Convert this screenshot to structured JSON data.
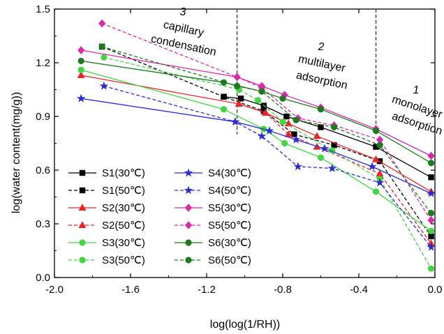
{
  "chart_data": {
    "type": "line",
    "xlabel": "log(log(1/RH))",
    "ylabel": "log(water content(mg/g))",
    "xlim": [
      -2.0,
      0.0
    ],
    "ylim": [
      0.0,
      1.5
    ],
    "xticks": [
      "-2.0",
      "-1.6",
      "-1.2",
      "-0.8",
      "-0.4",
      "0.0"
    ],
    "yticks": [
      "0.0",
      "0.3",
      "0.6",
      "0.9",
      "1.2",
      "1.5"
    ],
    "grid": false,
    "legend_position": "lower-left",
    "dividers_x": [
      -1.04,
      -0.31
    ],
    "annotations": [
      {
        "num": "3",
        "lines": [
          "capillary",
          "condensation"
        ]
      },
      {
        "num": "2",
        "lines": [
          "multilayer",
          "adsorption"
        ]
      },
      {
        "num": "1",
        "lines": [
          "monolayer",
          "adsorption"
        ]
      }
    ],
    "series": [
      {
        "name": "S1(30℃)",
        "color": "#000000",
        "dash": "solid",
        "marker": "square",
        "x": [
          -1.11,
          -1.02,
          -0.9,
          -0.78,
          -0.6,
          -0.31,
          -0.02
        ],
        "y": [
          1.01,
          1.0,
          0.96,
          0.9,
          0.84,
          0.73,
          0.56
        ]
      },
      {
        "name": "S1(50℃)",
        "color": "#000000",
        "dash": "dashed",
        "marker": "square",
        "x": [
          -1.75,
          -1.11,
          -0.9,
          -0.74,
          -0.53,
          -0.29,
          -0.02
        ],
        "y": [
          1.29,
          1.01,
          0.93,
          0.8,
          0.74,
          0.65,
          0.23
        ]
      },
      {
        "name": "S2(30℃)",
        "color": "#e8262a",
        "dash": "solid",
        "marker": "triangle",
        "x": [
          -1.86,
          -1.03,
          -0.89,
          -0.77,
          -0.62,
          -0.31,
          -0.02
        ],
        "y": [
          1.13,
          0.97,
          0.92,
          0.86,
          0.79,
          0.66,
          0.48
        ]
      },
      {
        "name": "S2(50℃)",
        "color": "#e8262a",
        "dash": "dashed",
        "marker": "triangle",
        "x": [
          -1.03,
          -0.89,
          -0.77,
          -0.62,
          -0.29,
          -0.02
        ],
        "y": [
          0.97,
          0.92,
          0.8,
          0.73,
          0.58,
          0.19
        ]
      },
      {
        "name": "S3(30℃)",
        "color": "#44d444",
        "dash": "solid",
        "marker": "circle",
        "x": [
          -1.86,
          -1.11,
          -0.9,
          -0.79,
          -0.6,
          -0.31,
          -0.02
        ],
        "y": [
          1.16,
          0.94,
          0.83,
          0.75,
          0.67,
          0.48,
          0.26
        ]
      },
      {
        "name": "S3(50℃)",
        "color": "#44d444",
        "dash": "dashed",
        "marker": "circle",
        "x": [
          -1.74,
          -1.03,
          -0.93,
          -0.8,
          -0.54,
          -0.29,
          -0.02
        ],
        "y": [
          1.23,
          1.05,
          0.99,
          0.87,
          0.71,
          0.55,
          0.05
        ]
      },
      {
        "name": "S4(30℃)",
        "color": "#2c2cd4",
        "dash": "solid",
        "marker": "star",
        "x": [
          -1.86,
          -1.05,
          -0.87,
          -0.73,
          -0.58,
          -0.33,
          -0.02
        ],
        "y": [
          1.0,
          0.87,
          0.82,
          0.77,
          0.72,
          0.62,
          0.47
        ]
      },
      {
        "name": "S4(50℃)",
        "color": "#2c2cd4",
        "dash": "dashed",
        "marker": "star",
        "x": [
          -1.74,
          -1.05,
          -0.91,
          -0.72,
          -0.54,
          -0.29,
          -0.02
        ],
        "y": [
          1.07,
          0.87,
          0.79,
          0.62,
          0.61,
          0.53,
          0.17
        ]
      },
      {
        "name": "S5(30℃)",
        "color": "#d82aa8",
        "dash": "solid",
        "marker": "diamond",
        "x": [
          -1.86,
          -1.04,
          -0.91,
          -0.79,
          -0.6,
          -0.31,
          -0.02
        ],
        "y": [
          1.27,
          1.12,
          1.07,
          1.02,
          0.95,
          0.83,
          0.68
        ]
      },
      {
        "name": "S5(50℃)",
        "color": "#d82aa8",
        "dash": "dashed",
        "marker": "diamond",
        "x": [
          -1.75,
          -1.04,
          -0.91,
          -0.72,
          -0.53,
          -0.29,
          -0.02
        ],
        "y": [
          1.42,
          1.12,
          1.06,
          0.89,
          0.85,
          0.77,
          0.32
        ]
      },
      {
        "name": "S6(30℃)",
        "color": "#1f7a1f",
        "dash": "solid",
        "marker": "circle",
        "x": [
          -1.86,
          -1.11,
          -0.91,
          -0.8,
          -0.6,
          -0.31,
          -0.02
        ],
        "y": [
          1.21,
          1.09,
          1.04,
          1.0,
          0.94,
          0.82,
          0.64
        ]
      },
      {
        "name": "S6(50℃)",
        "color": "#1f7a1f",
        "dash": "dashed",
        "marker": "circle",
        "x": [
          -1.75,
          -1.04,
          -0.91,
          -0.73,
          -0.53,
          -0.29,
          -0.02
        ],
        "y": [
          1.29,
          1.07,
          1.04,
          0.88,
          0.84,
          0.74,
          0.36
        ]
      }
    ]
  }
}
